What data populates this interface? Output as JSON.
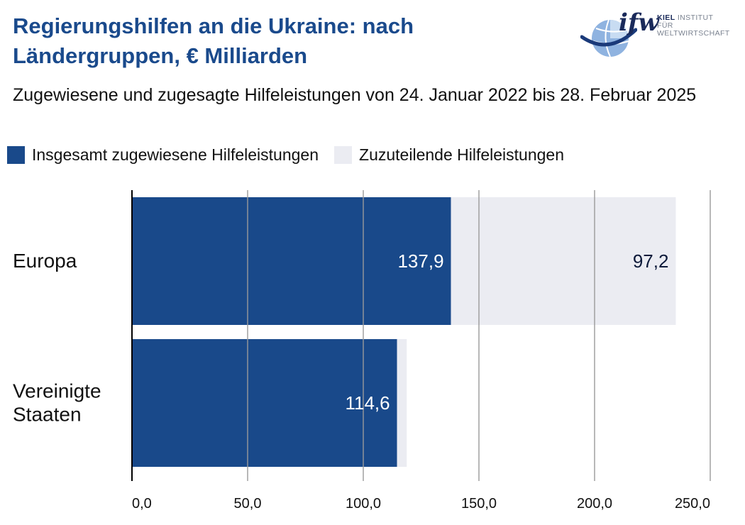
{
  "header": {
    "title": "Regierungshilfen an die Ukraine: nach Ländergruppen, € Milliarden",
    "subtitle": "Zugewiesene und zugesagte Hilfeleistungen von 24. Januar 2022 bis 28. Februar 2025"
  },
  "logo": {
    "mark": "ifw",
    "name_bold": "KIEL",
    "name_rest": " INSTITUT FÜR",
    "name_line2": "WELTWIRTSCHAFT"
  },
  "colors": {
    "allocated": "#19498a",
    "pending": "#ebecf2",
    "title": "#1a4a8c"
  },
  "chart_data": {
    "type": "bar",
    "orientation": "horizontal",
    "stacked": true,
    "categories": [
      "Europa",
      "Vereinigte Staaten"
    ],
    "series": [
      {
        "name": "Insgesamt zugewiesene Hilfeleistungen",
        "values": [
          137.9,
          114.6
        ],
        "labels": [
          "137,9",
          "114,6"
        ]
      },
      {
        "name": "Zuzuteilende Hilfeleistungen",
        "values": [
          97.2,
          4.2
        ],
        "labels": [
          "97,2",
          ""
        ]
      }
    ],
    "xlim": [
      0,
      250
    ],
    "xticks": [
      0,
      50,
      100,
      150,
      200,
      250
    ],
    "xtick_labels": [
      "0,0",
      "50,0",
      "100,0",
      "150,0",
      "200,0",
      "250,0"
    ],
    "grid": true,
    "legend_position": "top-left"
  }
}
